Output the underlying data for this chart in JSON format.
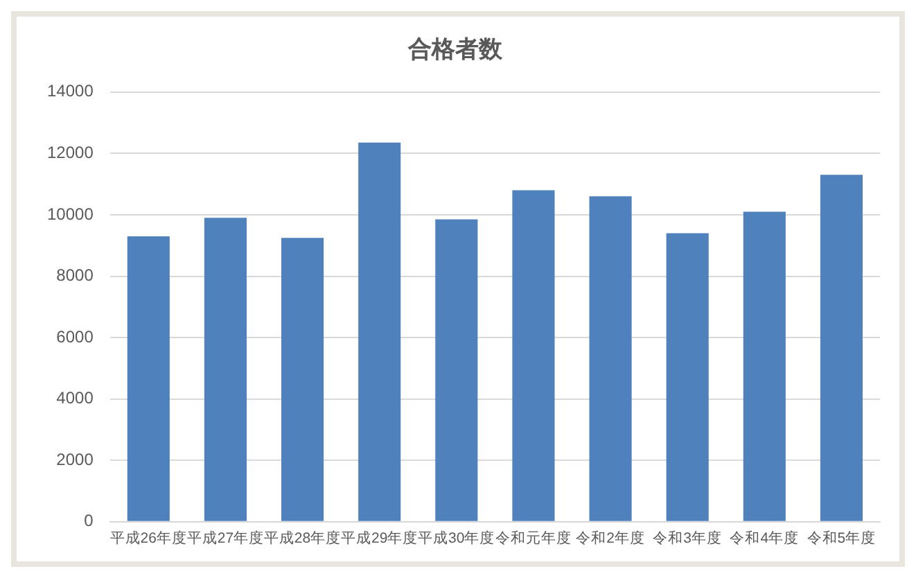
{
  "chart_data": {
    "type": "bar",
    "title": "合格者数",
    "categories": [
      "平成26年度",
      "平成27年度",
      "平成28年度",
      "平成29年度",
      "平成30年度",
      "令和元年度",
      "令和2年度",
      "令和3年度",
      "令和4年度",
      "令和5年度"
    ],
    "values": [
      9300,
      9900,
      9250,
      12350,
      9850,
      10800,
      10600,
      9400,
      10100,
      11300
    ],
    "color": "#4f81bd",
    "ylim": [
      0,
      14000
    ],
    "yticks": [
      0,
      2000,
      4000,
      6000,
      8000,
      10000,
      12000,
      14000
    ],
    "grid": "y"
  }
}
